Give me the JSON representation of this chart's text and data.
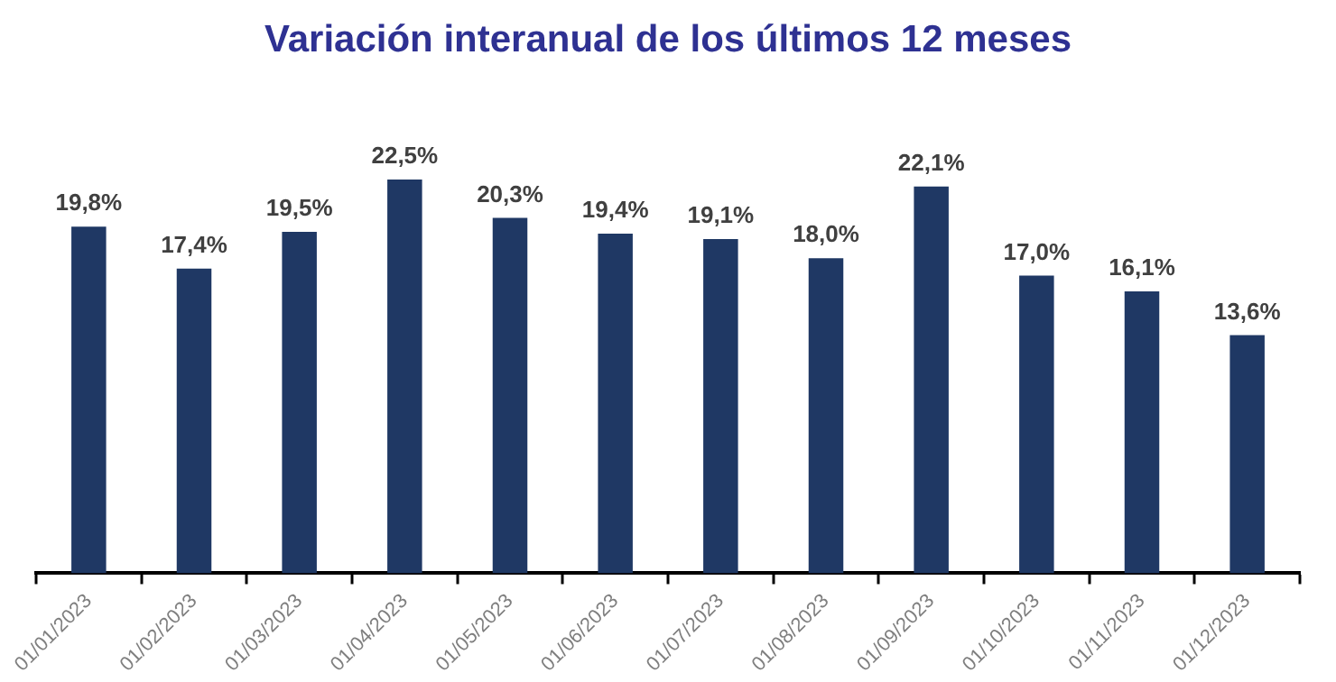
{
  "chart_data": {
    "type": "bar",
    "title": "Variación interanual de los últimos 12 meses",
    "categories": [
      "01/01/2023",
      "01/02/2023",
      "01/03/2023",
      "01/04/2023",
      "01/05/2023",
      "01/06/2023",
      "01/07/2023",
      "01/08/2023",
      "01/09/2023",
      "01/10/2023",
      "01/11/2023",
      "01/12/2023"
    ],
    "values": [
      19.8,
      17.4,
      19.5,
      22.5,
      20.3,
      19.4,
      19.1,
      18.0,
      22.1,
      17.0,
      16.1,
      13.6
    ],
    "value_labels": [
      "19,8%",
      "17,4%",
      "19,5%",
      "22,5%",
      "20,3%",
      "19,4%",
      "19,1%",
      "18,0%",
      "22,1%",
      "17,0%",
      "16,1%",
      "13,6%"
    ],
    "color": "#1f3864"
  }
}
